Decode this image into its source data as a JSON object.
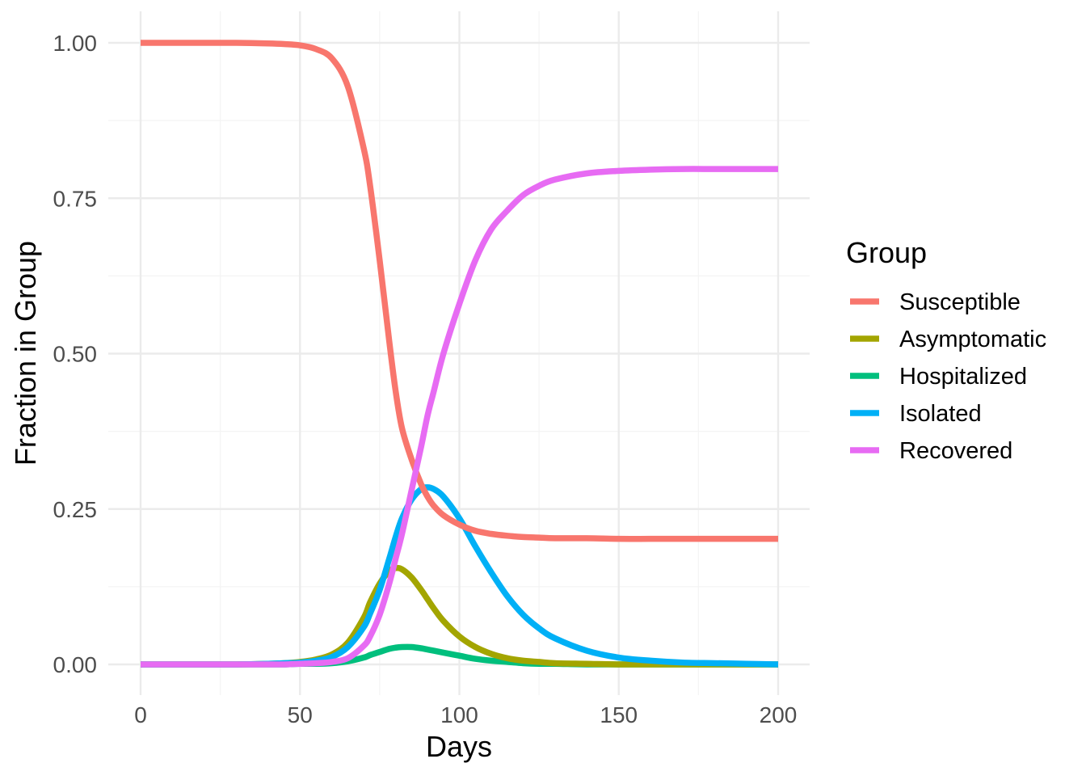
{
  "chart_data": {
    "type": "line",
    "xlabel": "Days",
    "ylabel": "Fraction in Group",
    "xlim": [
      0,
      200
    ],
    "ylim": [
      0,
      1
    ],
    "x_ticks": [
      0,
      50,
      100,
      150,
      200
    ],
    "x_tick_labels": [
      "0",
      "50",
      "100",
      "150",
      "200"
    ],
    "y_ticks": [
      0,
      0.25,
      0.5,
      0.75,
      1
    ],
    "y_tick_labels": [
      "0.00",
      "0.25",
      "0.50",
      "0.75",
      "1.00"
    ],
    "grid": true,
    "legend": {
      "title": "Group",
      "position": "right",
      "entries": [
        "Susceptible",
        "Asymptomatic",
        "Hospitalized",
        "Isolated",
        "Recovered"
      ]
    },
    "x": [
      0,
      10,
      20,
      30,
      40,
      45,
      50,
      55,
      60,
      65,
      70,
      72,
      75,
      78,
      80,
      82,
      85,
      88,
      90,
      92,
      95,
      100,
      105,
      110,
      115,
      120,
      125,
      130,
      140,
      150,
      160,
      170,
      180,
      190,
      200
    ],
    "series": [
      {
        "name": "Susceptible",
        "color": "#F8766D",
        "values": [
          1.0,
          1.0,
          1.0,
          1.0,
          0.999,
          0.998,
          0.996,
          0.99,
          0.975,
          0.93,
          0.83,
          0.77,
          0.65,
          0.52,
          0.44,
          0.38,
          0.33,
          0.29,
          0.27,
          0.255,
          0.24,
          0.225,
          0.215,
          0.21,
          0.207,
          0.205,
          0.204,
          0.203,
          0.203,
          0.202,
          0.202,
          0.202,
          0.202,
          0.202,
          0.202
        ]
      },
      {
        "name": "Asymptomatic",
        "color": "#A3A500",
        "values": [
          0,
          0,
          0,
          0,
          0.001,
          0.002,
          0.004,
          0.008,
          0.016,
          0.035,
          0.075,
          0.1,
          0.13,
          0.15,
          0.155,
          0.153,
          0.14,
          0.12,
          0.105,
          0.09,
          0.07,
          0.045,
          0.028,
          0.017,
          0.01,
          0.006,
          0.004,
          0.002,
          0.001,
          0,
          0,
          0,
          0,
          0,
          0
        ]
      },
      {
        "name": "Hospitalized",
        "color": "#00BF7D",
        "values": [
          0,
          0,
          0,
          0,
          0,
          0,
          0.001,
          0.001,
          0.002,
          0.005,
          0.011,
          0.015,
          0.02,
          0.025,
          0.027,
          0.028,
          0.028,
          0.026,
          0.024,
          0.022,
          0.019,
          0.014,
          0.009,
          0.006,
          0.004,
          0.002,
          0.001,
          0.001,
          0,
          0,
          0,
          0,
          0,
          0,
          0
        ]
      },
      {
        "name": "Isolated",
        "color": "#00B0F6",
        "values": [
          0,
          0,
          0,
          0,
          0.001,
          0.002,
          0.003,
          0.006,
          0.012,
          0.028,
          0.06,
          0.082,
          0.12,
          0.17,
          0.205,
          0.235,
          0.265,
          0.282,
          0.285,
          0.282,
          0.27,
          0.235,
          0.19,
          0.148,
          0.11,
          0.08,
          0.058,
          0.042,
          0.022,
          0.011,
          0.006,
          0.003,
          0.002,
          0.001,
          0
        ]
      },
      {
        "name": "Recovered",
        "color": "#E76BF3",
        "values": [
          0,
          0,
          0,
          0,
          0,
          0,
          0.001,
          0.002,
          0.004,
          0.01,
          0.03,
          0.045,
          0.08,
          0.13,
          0.17,
          0.21,
          0.28,
          0.35,
          0.4,
          0.44,
          0.5,
          0.58,
          0.65,
          0.7,
          0.73,
          0.755,
          0.77,
          0.78,
          0.79,
          0.794,
          0.796,
          0.797,
          0.797,
          0.797,
          0.797
        ]
      }
    ]
  }
}
